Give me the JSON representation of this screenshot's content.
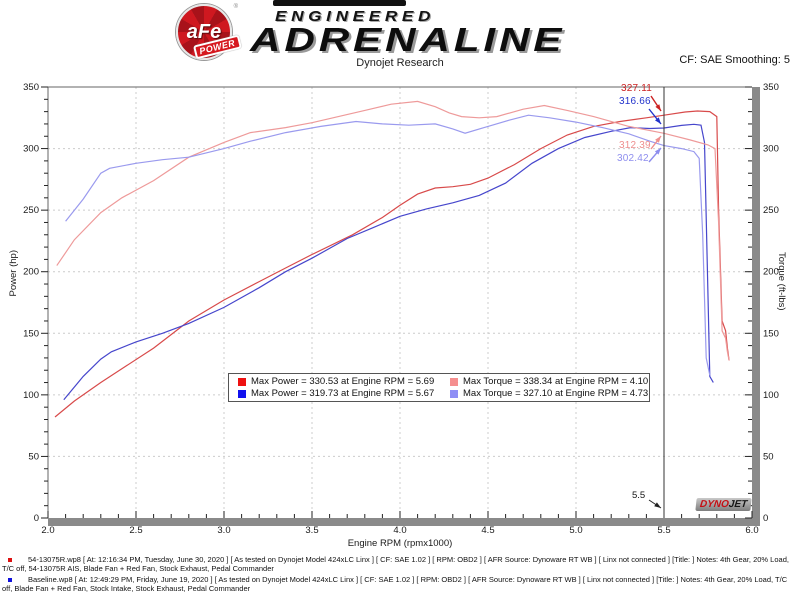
{
  "header": {
    "logo_text": "aFe",
    "logo_reg": "®",
    "logo_sub": "POWER",
    "brand_small": "ENGINEERED",
    "brand_large": "ADRENALINE",
    "subtitle": "Dynojet Research",
    "smoothing_label": "CF: SAE Smoothing: 5"
  },
  "chart_data": {
    "type": "line",
    "xlabel": "Engine RPM (rpmx1000)",
    "ylabel_left": "Power (hp)",
    "ylabel_right": "Torque (ft-lbs)",
    "grid": "dotted",
    "legend_position": "bottom-center-inside",
    "x_axis": {
      "min": 2.0,
      "max": 6.0,
      "major_step": 0.5,
      "minor_step": 0.1,
      "tick_labels": [
        "2.0",
        "2.5",
        "3.0",
        "3.5",
        "4.0",
        "4.5",
        "5.0",
        "5.5",
        "6.0"
      ]
    },
    "y_axis": {
      "min": 0,
      "max": 350,
      "major_step": 50,
      "minor_step": 10,
      "tick_labels": [
        "0",
        "50",
        "100",
        "150",
        "200",
        "250",
        "300",
        "350"
      ]
    },
    "cursor": {
      "rpm": 5.5,
      "label": "5.5"
    },
    "annotations": [
      {
        "text": "327.11",
        "color": "#cc2222",
        "pos": [
          621,
          83
        ],
        "tail": [
          651,
          96
        ],
        "head": [
          661,
          111
        ]
      },
      {
        "text": "316.66",
        "color": "#2233cc",
        "pos": [
          619,
          96
        ],
        "tail": [
          649,
          109
        ],
        "head": [
          661,
          124
        ]
      },
      {
        "text": "312.39",
        "color": "#ee8e8e",
        "pos": [
          619,
          140
        ],
        "tail": [
          651,
          149
        ],
        "head": [
          661,
          136
        ]
      },
      {
        "text": "302.42",
        "color": "#8e8eee",
        "pos": [
          617,
          153
        ],
        "tail": [
          649,
          162
        ],
        "head": [
          661,
          148
        ]
      }
    ],
    "series": [
      {
        "name": "54-13075R Power",
        "color": "#d84a4a",
        "axis": "power",
        "points": [
          [
            2.04,
            82
          ],
          [
            2.15,
            95
          ],
          [
            2.3,
            110
          ],
          [
            2.45,
            124
          ],
          [
            2.6,
            138
          ],
          [
            2.8,
            160
          ],
          [
            3.0,
            177
          ],
          [
            3.2,
            192
          ],
          [
            3.35,
            203
          ],
          [
            3.5,
            214
          ],
          [
            3.73,
            230
          ],
          [
            3.9,
            244
          ],
          [
            4.0,
            254
          ],
          [
            4.1,
            263
          ],
          [
            4.2,
            268
          ],
          [
            4.3,
            269
          ],
          [
            4.4,
            271
          ],
          [
            4.5,
            276
          ],
          [
            4.65,
            287
          ],
          [
            4.8,
            300
          ],
          [
            4.95,
            311
          ],
          [
            5.1,
            318
          ],
          [
            5.25,
            322
          ],
          [
            5.4,
            325
          ],
          [
            5.5,
            327.1
          ],
          [
            5.62,
            329.7
          ],
          [
            5.69,
            330.5
          ],
          [
            5.76,
            330
          ],
          [
            5.8,
            326
          ],
          [
            5.81,
            250
          ],
          [
            5.83,
            160
          ],
          [
            5.85,
            152
          ],
          [
            5.86,
            138
          ],
          [
            5.87,
            128
          ]
        ]
      },
      {
        "name": "Baseline Power",
        "color": "#4646cc",
        "axis": "power",
        "points": [
          [
            2.09,
            96
          ],
          [
            2.2,
            115
          ],
          [
            2.3,
            129
          ],
          [
            2.36,
            135
          ],
          [
            2.5,
            143
          ],
          [
            2.65,
            150
          ],
          [
            2.8,
            158
          ],
          [
            3.0,
            171
          ],
          [
            3.2,
            187
          ],
          [
            3.35,
            200
          ],
          [
            3.5,
            211
          ],
          [
            3.7,
            227
          ],
          [
            3.85,
            236
          ],
          [
            4.0,
            245
          ],
          [
            4.15,
            251
          ],
          [
            4.3,
            256
          ],
          [
            4.45,
            262
          ],
          [
            4.6,
            272
          ],
          [
            4.75,
            288
          ],
          [
            4.9,
            300
          ],
          [
            5.05,
            309
          ],
          [
            5.2,
            314
          ],
          [
            5.31,
            317
          ],
          [
            5.42,
            316.3
          ],
          [
            5.5,
            316.7
          ],
          [
            5.6,
            318.8
          ],
          [
            5.67,
            319.7
          ],
          [
            5.71,
            319
          ],
          [
            5.73,
            305
          ],
          [
            5.75,
            180
          ],
          [
            5.76,
            115
          ],
          [
            5.78,
            110
          ]
        ]
      },
      {
        "name": "54-13075R Torque",
        "color": "#ee9a9a",
        "axis": "torque",
        "points": [
          [
            2.05,
            205
          ],
          [
            2.15,
            226
          ],
          [
            2.3,
            248
          ],
          [
            2.42,
            260
          ],
          [
            2.6,
            274
          ],
          [
            2.8,
            293
          ],
          [
            3.0,
            305
          ],
          [
            3.15,
            313
          ],
          [
            3.35,
            317
          ],
          [
            3.5,
            321
          ],
          [
            3.65,
            326
          ],
          [
            3.8,
            331
          ],
          [
            3.95,
            336
          ],
          [
            4.1,
            338.3
          ],
          [
            4.2,
            334
          ],
          [
            4.28,
            329
          ],
          [
            4.35,
            326
          ],
          [
            4.45,
            325
          ],
          [
            4.55,
            326
          ],
          [
            4.7,
            332
          ],
          [
            4.82,
            335
          ],
          [
            4.95,
            331
          ],
          [
            5.1,
            326
          ],
          [
            5.3,
            318
          ],
          [
            5.5,
            312.4
          ],
          [
            5.65,
            307
          ],
          [
            5.75,
            303
          ],
          [
            5.79,
            300
          ],
          [
            5.81,
            240
          ],
          [
            5.83,
            152
          ],
          [
            5.85,
            146
          ],
          [
            5.86,
            135
          ],
          [
            5.87,
            128
          ]
        ]
      },
      {
        "name": "Baseline Torque",
        "color": "#9a9aee",
        "axis": "torque",
        "points": [
          [
            2.1,
            241
          ],
          [
            2.2,
            259
          ],
          [
            2.3,
            280
          ],
          [
            2.35,
            284
          ],
          [
            2.5,
            288
          ],
          [
            2.65,
            291
          ],
          [
            2.8,
            293
          ],
          [
            3.0,
            300
          ],
          [
            3.15,
            306
          ],
          [
            3.35,
            313
          ],
          [
            3.55,
            318
          ],
          [
            3.75,
            322
          ],
          [
            3.9,
            320
          ],
          [
            4.05,
            319
          ],
          [
            4.2,
            320
          ],
          [
            4.3,
            316
          ],
          [
            4.37,
            312.5
          ],
          [
            4.5,
            318
          ],
          [
            4.62,
            323
          ],
          [
            4.73,
            327.1
          ],
          [
            4.85,
            325
          ],
          [
            5.0,
            321.5
          ],
          [
            5.15,
            317
          ],
          [
            5.3,
            312
          ],
          [
            5.42,
            306
          ],
          [
            5.5,
            302.4
          ],
          [
            5.6,
            300
          ],
          [
            5.67,
            297.5
          ],
          [
            5.7,
            292
          ],
          [
            5.72,
            230
          ],
          [
            5.74,
            130
          ],
          [
            5.76,
            116
          ]
        ]
      }
    ]
  },
  "legend": {
    "items": [
      {
        "color": "#ee1111",
        "text": "Max Power = 330.53 at Engine RPM = 5.69"
      },
      {
        "color": "#f58f8f",
        "text": "Max Torque = 338.34 at Engine RPM = 4.10"
      },
      {
        "color": "#1111ee",
        "text": "Max Power = 319.73 at Engine RPM = 5.67"
      },
      {
        "color": "#8f8ff5",
        "text": "Max Torque = 327.10 at Engine RPM = 4.73"
      }
    ]
  },
  "watermark": {
    "part1": "DYNO",
    "part2": "JET"
  },
  "footer": {
    "runs": [
      {
        "color": "#dd1111",
        "text": "54-13075R.wp8 [ At: 12:16:34 PM, Tuesday, June 30, 2020 ] [ As tested on Dynojet Model 424xLC Linx ] [ CF: SAE 1.02 ] [ RPM: OBD2 ] [ AFR Source: Dynoware RT WB ] [ Linx not connected ] [Title: ]  Notes: 4th Gear, 20% Load, T/C off, 54-13075R AIS, Blade Fan + Red Fan, Stock Exhaust, Pedal Commander"
      },
      {
        "color": "#1111dd",
        "text": "Baseline.wp8 [ At: 12:49:29 PM, Friday, June 19, 2020 ] [ As tested on Dynojet Model 424xLC Linx ] [ CF: SAE 1.02 ] [ RPM: OBD2 ] [ AFR Source: Dynoware RT WB ] [ Linx not connected ] [Title: ]  Notes: 4th Gear, 20% Load, T/C off, Blade Fan + Red Fan, Stock Intake, Stock Exhaust, Pedal Commander"
      }
    ]
  }
}
